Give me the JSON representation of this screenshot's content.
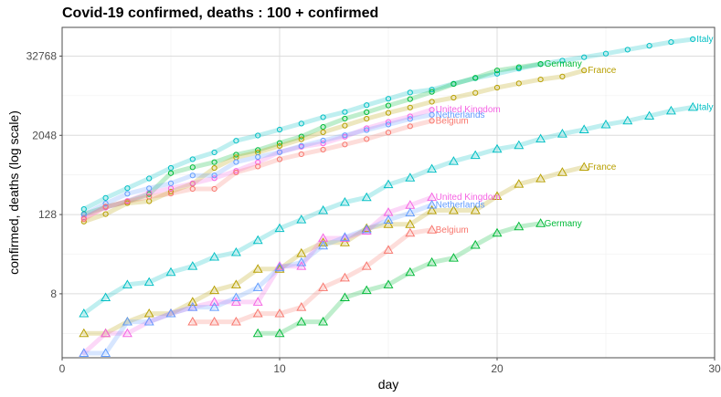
{
  "chart_data": {
    "type": "line",
    "title": "Covid-19 confirmed, deaths : 100 + confirmed",
    "xlabel": "day",
    "ylabel": "confirmed, deaths (log scale)",
    "x_scale": "linear",
    "y_scale": "log2",
    "xlim": [
      0,
      30
    ],
    "x_ticks": [
      0,
      10,
      20,
      30
    ],
    "y_ticks": [
      8,
      128,
      2048,
      32768
    ],
    "grid": true,
    "legend": "none (series labelled at line ends)",
    "series": [
      {
        "name": "Italy",
        "metric": "confirmed",
        "color": "#00BFC4",
        "x": [
          1,
          2,
          3,
          4,
          5,
          6,
          7,
          8,
          9,
          10,
          11,
          12,
          13,
          14,
          15,
          16,
          17,
          18,
          19,
          20,
          21,
          22,
          23,
          24,
          25,
          26,
          27,
          28,
          29
        ],
        "y": [
          155,
          229,
          322,
          453,
          655,
          888,
          1128,
          1694,
          2036,
          2502,
          3089,
          3858,
          4636,
          5883,
          7375,
          9172,
          10149,
          12462,
          15113,
          17660,
          21157,
          24747,
          27980,
          31506,
          35713,
          41035,
          47021,
          53578,
          59138
        ]
      },
      {
        "name": "Germany",
        "metric": "confirmed",
        "color": "#00BA38",
        "x": [
          1,
          2,
          3,
          4,
          5,
          6,
          7,
          8,
          9,
          10,
          11,
          12,
          13,
          14,
          15,
          16,
          17,
          18,
          19,
          20,
          21,
          22
        ],
        "y": [
          130,
          165,
          203,
          262,
          545,
          670,
          800,
          1040,
          1224,
          1565,
          1966,
          2745,
          3675,
          4599,
          5813,
          7272,
          9367,
          12327,
          15320,
          19848,
          22213,
          24873
        ]
      },
      {
        "name": "France",
        "metric": "confirmed",
        "color": "#B79F00",
        "x": [
          1,
          2,
          3,
          4,
          5,
          6,
          7,
          8,
          9,
          10,
          11,
          12,
          13,
          14,
          15,
          16,
          17,
          18,
          19,
          20,
          21,
          22,
          23,
          24
        ],
        "y": [
          100,
          130,
          191,
          204,
          285,
          377,
          653,
          949,
          1126,
          1412,
          1784,
          2281,
          2876,
          3661,
          4499,
          5423,
          6633,
          7652,
          9043,
          10871,
          12612,
          14459,
          16018,
          19856
        ]
      },
      {
        "name": "United Kingdom",
        "metric": "confirmed",
        "color": "#F564E3",
        "x": [
          1,
          2,
          3,
          4,
          5,
          6,
          7,
          8,
          9,
          10,
          11,
          12,
          13,
          14,
          15,
          16,
          17
        ],
        "y": [
          115,
          163,
          206,
          273,
          321,
          382,
          456,
          590,
          798,
          1140,
          1372,
          1543,
          1950,
          2626,
          3269,
          3983,
          5018
        ]
      },
      {
        "name": "Netherlands",
        "metric": "confirmed",
        "color": "#619CFF",
        "x": [
          1,
          2,
          3,
          4,
          5,
          6,
          7,
          8,
          9,
          10,
          11,
          12,
          13,
          14,
          15,
          16,
          17
        ],
        "y": [
          128,
          188,
          265,
          321,
          382,
          503,
          503,
          804,
          959,
          1135,
          1413,
          1705,
          2051,
          2460,
          2994,
          3631,
          4204
        ]
      },
      {
        "name": "Belgium",
        "metric": "confirmed",
        "color": "#F8766D",
        "x": [
          1,
          2,
          3,
          4,
          5,
          6,
          7,
          8,
          9,
          10,
          11,
          12,
          13,
          14,
          15,
          16,
          17
        ],
        "y": [
          109,
          169,
          200,
          239,
          267,
          314,
          314,
          559,
          689,
          886,
          1058,
          1243,
          1486,
          1795,
          2257,
          2815,
          3401
        ]
      },
      {
        "name": "Italy",
        "metric": "deaths",
        "color": "#00BFC4",
        "x": [
          1,
          2,
          3,
          4,
          5,
          6,
          7,
          8,
          9,
          10,
          11,
          12,
          13,
          14,
          15,
          16,
          17,
          18,
          19,
          20,
          21,
          22,
          23,
          24,
          25,
          26,
          27,
          28,
          29
        ],
        "y": [
          4,
          7,
          11,
          12,
          17,
          21,
          29,
          34,
          52,
          79,
          107,
          148,
          197,
          233,
          366,
          463,
          631,
          827,
          1016,
          1266,
          1441,
          1809,
          2158,
          2503,
          2978,
          3405,
          4032,
          4825,
          5476
        ]
      },
      {
        "name": "Germany",
        "metric": "deaths",
        "color": "#00BA38",
        "x": [
          9,
          10,
          11,
          12,
          13,
          14,
          15,
          16,
          17,
          18,
          19,
          20,
          21,
          22
        ],
        "y": [
          2,
          2,
          3,
          3,
          7,
          9,
          11,
          17,
          24,
          28,
          44,
          67,
          84,
          94
        ]
      },
      {
        "name": "France",
        "metric": "deaths",
        "color": "#B79F00",
        "x": [
          1,
          2,
          3,
          4,
          5,
          6,
          7,
          8,
          9,
          10,
          11,
          12,
          13,
          14,
          15,
          16,
          17,
          18,
          19,
          20,
          21,
          22,
          23,
          24
        ],
        "y": [
          2,
          2,
          3,
          4,
          4,
          6,
          9,
          11,
          19,
          19,
          33,
          48,
          48,
          79,
          91,
          91,
          148,
          148,
          148,
          243,
          372,
          450,
          562,
          674
        ]
      },
      {
        "name": "United Kingdom",
        "metric": "deaths",
        "color": "#F564E3",
        "x": [
          1,
          2,
          3,
          4,
          5,
          6,
          7,
          8,
          9,
          10,
          11,
          12,
          13,
          14,
          15,
          16,
          17
        ],
        "y": [
          1,
          2,
          2,
          3,
          4,
          5,
          6,
          6,
          6,
          21,
          21,
          56,
          56,
          72,
          138,
          178,
          234
        ]
      },
      {
        "name": "Netherlands",
        "metric": "deaths",
        "color": "#619CFF",
        "x": [
          1,
          2,
          3,
          4,
          5,
          6,
          7,
          8,
          9,
          10,
          11,
          12,
          13,
          14,
          15,
          16,
          17
        ],
        "y": [
          1,
          1,
          3,
          3,
          4,
          5,
          5,
          7,
          10,
          20,
          24,
          43,
          58,
          76,
          106,
          136,
          179
        ]
      },
      {
        "name": "Belgium",
        "metric": "deaths",
        "color": "#F8766D",
        "x": [
          6,
          7,
          8,
          9,
          10,
          11,
          12,
          13,
          14,
          15,
          16,
          17
        ],
        "y": [
          3,
          3,
          3,
          4,
          4,
          5,
          10,
          14,
          21,
          37,
          67,
          75
        ]
      }
    ]
  }
}
